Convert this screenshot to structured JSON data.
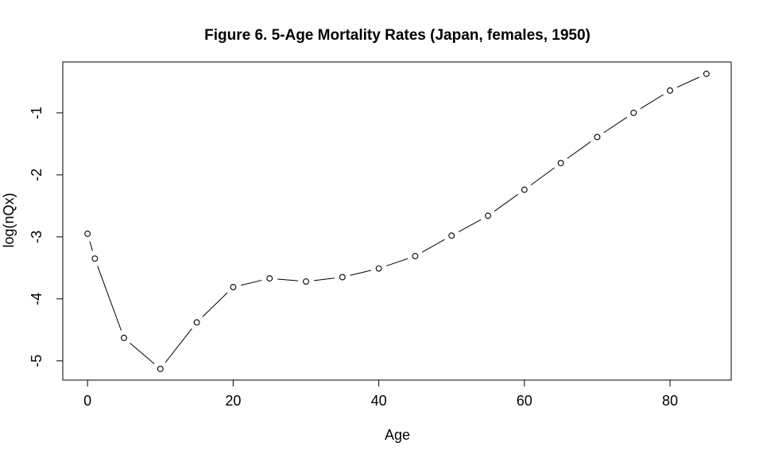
{
  "window": {
    "background_color": "#ffffff",
    "foreground_color": "#000000"
  },
  "chart_data": {
    "type": "line",
    "title": "Figure 6. 5-Age Mortality Rates (Japan, females, 1950)",
    "xlabel": "Age",
    "ylabel": "log(nQx)",
    "x": [
      0,
      1,
      5,
      10,
      15,
      20,
      25,
      30,
      35,
      40,
      45,
      50,
      55,
      60,
      65,
      70,
      75,
      80,
      85
    ],
    "y": [
      -2.95,
      -3.35,
      -4.63,
      -5.13,
      -4.38,
      -3.81,
      -3.67,
      -3.72,
      -3.65,
      -3.51,
      -3.31,
      -2.98,
      -2.66,
      -2.24,
      -1.81,
      -1.39,
      -1.0,
      -0.64,
      -0.37
    ],
    "x_ticks": [
      0,
      20,
      40,
      60,
      80
    ],
    "y_ticks": [
      -1,
      -2,
      -3,
      -4,
      -5
    ],
    "xlim": [
      -3.4,
      88.4
    ],
    "ylim": [
      -5.31,
      -0.18
    ],
    "marker": "open-circle",
    "line_style": "segments-with-gaps",
    "legend": "none",
    "grid": false,
    "colors": {
      "foreground": "#000000",
      "background": "#ffffff"
    }
  }
}
